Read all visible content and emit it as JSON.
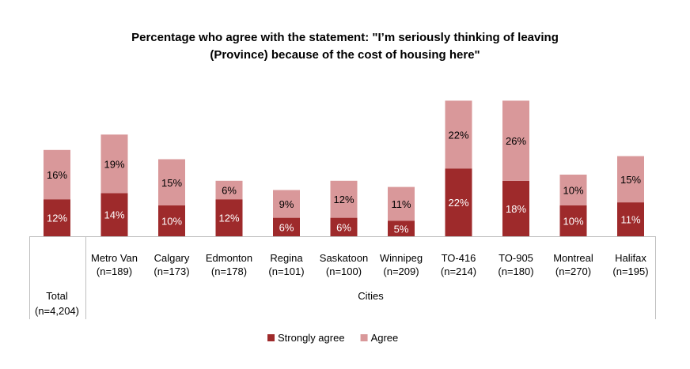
{
  "chart_data": {
    "type": "bar",
    "stacked": true,
    "title": [
      "Percentage who agree with the statement: \"I’m seriously thinking of leaving",
      "(Province) because of the cost of housing here\""
    ],
    "categories": [
      {
        "name": "Total",
        "n": "(n=4,204)"
      },
      {
        "name": "Metro Van",
        "n": "(n=189)"
      },
      {
        "name": "Calgary",
        "n": "(n=173)"
      },
      {
        "name": "Edmonton",
        "n": "(n=178)"
      },
      {
        "name": "Regina",
        "n": "(n=101)"
      },
      {
        "name": "Saskatoon",
        "n": "(n=100)"
      },
      {
        "name": "Winnipeg",
        "n": "(n=209)"
      },
      {
        "name": "TO-416",
        "n": "(n=214)"
      },
      {
        "name": "TO-905",
        "n": "(n=180)"
      },
      {
        "name": "Montreal",
        "n": "(n=270)"
      },
      {
        "name": "Halifax",
        "n": "(n=195)"
      }
    ],
    "group_labels": [
      "Cities"
    ],
    "series": [
      {
        "name": "Strongly agree",
        "color": "#9E2A2B",
        "values": [
          12,
          14,
          10,
          12,
          6,
          6,
          5,
          22,
          18,
          10,
          11
        ]
      },
      {
        "name": "Agree",
        "color": "#D9989A",
        "values": [
          16,
          19,
          15,
          6,
          9,
          12,
          11,
          22,
          26,
          10,
          15
        ]
      }
    ],
    "value_suffix": "%",
    "legend_position": "bottom-center",
    "grid": false
  }
}
